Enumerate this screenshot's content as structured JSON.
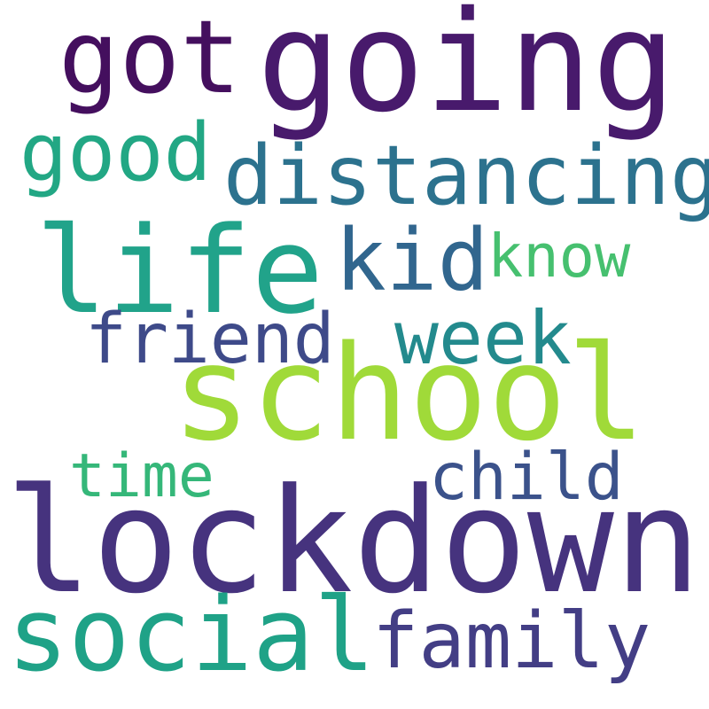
{
  "words": [
    {
      "id": "going",
      "text": "going",
      "color": "#481a6c"
    },
    {
      "id": "got",
      "text": "got",
      "color": "#440f5e"
    },
    {
      "id": "good",
      "text": "good",
      "color": "#22a784"
    },
    {
      "id": "distancing",
      "text": "distancing",
      "color": "#2c728e"
    },
    {
      "id": "life",
      "text": "life",
      "color": "#21a38a"
    },
    {
      "id": "kid",
      "text": "kid",
      "color": "#31668e"
    },
    {
      "id": "know",
      "text": "know",
      "color": "#46c06f"
    },
    {
      "id": "friend",
      "text": "friend",
      "color": "#3e4a89"
    },
    {
      "id": "week",
      "text": "week",
      "color": "#238a8d"
    },
    {
      "id": "school",
      "text": "school",
      "color": "#a0da39"
    },
    {
      "id": "time",
      "text": "time",
      "color": "#35b779"
    },
    {
      "id": "child",
      "text": "child",
      "color": "#3b528b"
    },
    {
      "id": "lockdown",
      "text": "lockdown",
      "color": "#46337e"
    },
    {
      "id": "social",
      "text": "social",
      "color": "#1fa287"
    },
    {
      "id": "family",
      "text": "family",
      "color": "#433e85"
    }
  ]
}
